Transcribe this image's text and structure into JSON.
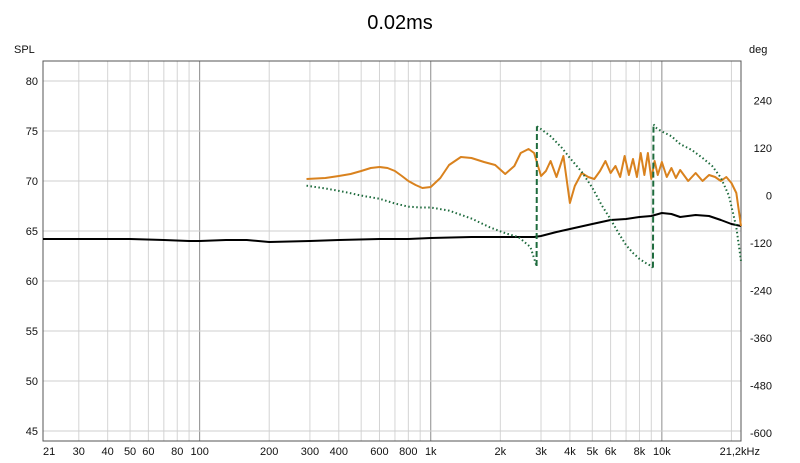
{
  "chart_data": {
    "type": "line",
    "title": "0.02ms",
    "x_scale": "log",
    "xlim": [
      21,
      22000
    ],
    "ylim": [
      44,
      82
    ],
    "y2lim": [
      -620,
      340
    ],
    "ylabel": "SPL",
    "y2label": "deg",
    "grid": true,
    "x_ticks": [
      {
        "v": 21,
        "label": "21"
      },
      {
        "v": 30,
        "label": "30"
      },
      {
        "v": 40,
        "label": "40"
      },
      {
        "v": 50,
        "label": "50"
      },
      {
        "v": 60,
        "label": "60"
      },
      {
        "v": 80,
        "label": "80"
      },
      {
        "v": 100,
        "label": "100"
      },
      {
        "v": 200,
        "label": "200"
      },
      {
        "v": 300,
        "label": "300"
      },
      {
        "v": 400,
        "label": "400"
      },
      {
        "v": 600,
        "label": "600"
      },
      {
        "v": 800,
        "label": "800"
      },
      {
        "v": 1000,
        "label": "1k"
      },
      {
        "v": 2000,
        "label": "2k"
      },
      {
        "v": 3000,
        "label": "3k"
      },
      {
        "v": 4000,
        "label": "4k"
      },
      {
        "v": 5000,
        "label": "5k"
      },
      {
        "v": 6000,
        "label": "6k"
      },
      {
        "v": 8000,
        "label": "8k"
      },
      {
        "v": 10000,
        "label": "10k"
      },
      {
        "v": 21200,
        "label": "21,2kHz"
      }
    ],
    "y_ticks": [
      45,
      50,
      55,
      60,
      65,
      70,
      75,
      80
    ],
    "y2_ticks": [
      -600,
      -480,
      -360,
      -240,
      -120,
      0,
      120,
      240
    ],
    "series": [
      {
        "color": "#000000",
        "style": "solid",
        "axis": "left",
        "x": [
          21,
          30,
          50,
          70,
          90,
          100,
          130,
          160,
          200,
          300,
          400,
          600,
          800,
          1000,
          1500,
          2000,
          2500,
          2800,
          3000,
          3500,
          4000,
          5000,
          6000,
          7000,
          8000,
          9000,
          10000,
          11000,
          12000,
          14000,
          16000,
          18000,
          20000,
          22000
        ],
        "y": [
          64.2,
          64.2,
          64.2,
          64.1,
          64.0,
          64.0,
          64.1,
          64.1,
          63.9,
          64.0,
          64.1,
          64.2,
          64.2,
          64.3,
          64.4,
          64.4,
          64.4,
          64.4,
          64.5,
          64.9,
          65.2,
          65.7,
          66.1,
          66.2,
          66.4,
          66.5,
          66.8,
          66.7,
          66.4,
          66.6,
          66.5,
          66.1,
          65.7,
          65.5
        ]
      },
      {
        "color": "#d9821e",
        "style": "solid",
        "axis": "left",
        "x": [
          290,
          350,
          400,
          450,
          500,
          550,
          600,
          650,
          700,
          750,
          800,
          860,
          920,
          1000,
          1100,
          1200,
          1350,
          1500,
          1700,
          1900,
          2100,
          2300,
          2450,
          2650,
          2800,
          3000,
          3150,
          3300,
          3500,
          3750,
          4000,
          4200,
          4500,
          4800,
          5100,
          5400,
          5700,
          6000,
          6300,
          6600,
          6900,
          7200,
          7500,
          7800,
          8100,
          8400,
          8700,
          9000,
          9300,
          9600,
          10000,
          10500,
          11000,
          11500,
          12000,
          13000,
          14000,
          15000,
          16000,
          17000,
          18000,
          19000,
          20000,
          21000,
          22000
        ],
        "y": [
          70.2,
          70.3,
          70.5,
          70.7,
          71.0,
          71.3,
          71.4,
          71.3,
          71.0,
          70.5,
          70.0,
          69.6,
          69.3,
          69.4,
          70.3,
          71.6,
          72.4,
          72.3,
          71.9,
          71.6,
          70.7,
          71.5,
          72.8,
          73.2,
          72.8,
          70.5,
          71.0,
          72.0,
          70.4,
          72.5,
          67.8,
          69.5,
          70.8,
          70.4,
          70.2,
          71.0,
          72.0,
          70.8,
          71.5,
          70.4,
          72.5,
          70.6,
          72.2,
          70.4,
          72.8,
          70.6,
          72.8,
          70.2,
          72.0,
          70.6,
          71.9,
          70.4,
          71.3,
          70.3,
          71.1,
          70.0,
          70.8,
          70.0,
          70.6,
          70.4,
          70.0,
          70.4,
          69.8,
          68.8,
          65.5
        ]
      },
      {
        "color": "#1e6b3d",
        "style": "dotted",
        "axis": "right",
        "x": [
          290,
          350,
          400,
          450,
          500,
          600,
          700,
          800,
          900,
          1000,
          1200,
          1500,
          1800,
          2100,
          2400,
          2700,
          2870,
          2880,
          3000,
          3300,
          3700,
          4000,
          4500,
          5000,
          5500,
          6000,
          6500,
          7000,
          7500,
          8000,
          8500,
          9000,
          9150,
          9200,
          9500,
          10000,
          11000,
          12000,
          13500,
          15000,
          16500,
          18000,
          19500,
          21000,
          22000
        ],
        "y": [
          25,
          18,
          12,
          6,
          0,
          -8,
          -20,
          -28,
          -30,
          -30,
          -38,
          -58,
          -80,
          -95,
          -105,
          -130,
          -178,
          175,
          168,
          150,
          120,
          95,
          60,
          20,
          -25,
          -60,
          -95,
          -125,
          -145,
          -160,
          -170,
          -178,
          -182,
          180,
          170,
          162,
          150,
          130,
          115,
          95,
          75,
          45,
          0,
          -80,
          -165
        ]
      }
    ]
  }
}
